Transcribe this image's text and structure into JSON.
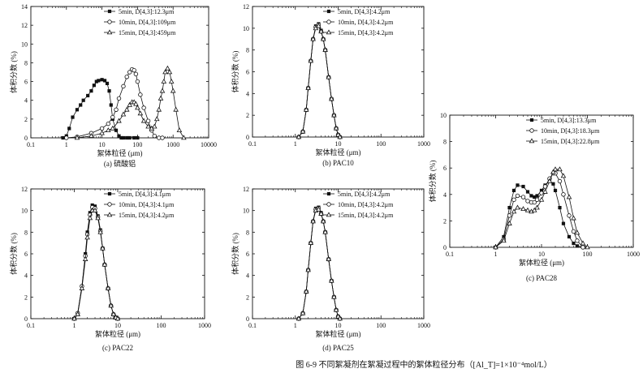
{
  "figure_caption": "图 6-9   不同絮凝剂在絮凝过程中的絮体粒径分布（[Al_T]=1×10⁻⁴mol/L）",
  "chart_data": [
    {
      "type": "line",
      "panel_label": "(a) 硫酸铝",
      "xlabel": "絮体粒径 (μm)",
      "ylabel": "体积分数 (%)",
      "xscale": "log",
      "xlim": [
        0.1,
        10000
      ],
      "ylim": [
        0,
        14
      ],
      "yticks": [
        0,
        2,
        4,
        6,
        8,
        10,
        12,
        14
      ],
      "xticks": [
        "0.1",
        "1",
        "10",
        "100",
        "1000",
        "10000"
      ],
      "legend_position": "top-right",
      "series": [
        {
          "name": "5min, D[4,3]:12.3μm",
          "marker": "square-filled",
          "x": [
            0.8,
            1.0,
            1.2,
            1.5,
            2,
            2.5,
            3,
            4,
            5,
            6,
            7,
            8,
            10,
            12,
            14,
            16,
            18,
            20,
            25,
            30,
            35,
            40,
            50,
            60,
            80,
            100
          ],
          "y": [
            0,
            0.2,
            1.0,
            2.2,
            3.0,
            3.5,
            4.0,
            4.5,
            5.0,
            5.6,
            6.0,
            6.1,
            6.2,
            6.1,
            5.8,
            5.0,
            3.5,
            2.0,
            0.8,
            0.2,
            0,
            0,
            0,
            0,
            0,
            0
          ]
        },
        {
          "name": "10min, D[4,3]:109μm",
          "marker": "circle-open",
          "x": [
            1,
            2,
            5,
            10,
            15,
            20,
            25,
            30,
            40,
            50,
            60,
            70,
            80,
            90,
            100,
            120,
            150,
            200,
            250,
            300,
            400,
            500
          ],
          "y": [
            0,
            0.1,
            0.5,
            1.0,
            1.5,
            2.2,
            3.0,
            4.2,
            5.5,
            6.5,
            7.0,
            7.3,
            7.2,
            6.8,
            6.0,
            4.6,
            3.2,
            1.8,
            0.8,
            0.2,
            0,
            0
          ]
        },
        {
          "name": "15min, D[4,3]:459μm",
          "marker": "triangle-open",
          "x": [
            2,
            5,
            10,
            15,
            20,
            30,
            40,
            50,
            60,
            70,
            80,
            90,
            100,
            120,
            150,
            200,
            250,
            300,
            350,
            400,
            450,
            500,
            550,
            600,
            700,
            800,
            900,
            1000,
            1200,
            1500,
            2000
          ],
          "y": [
            0,
            0.2,
            0.5,
            0.8,
            1.0,
            1.8,
            2.5,
            3.0,
            3.5,
            3.8,
            3.8,
            3.6,
            3.2,
            2.6,
            1.8,
            1.2,
            1.0,
            1.2,
            2.0,
            3.0,
            4.2,
            5.0,
            6.0,
            7.0,
            7.4,
            7.0,
            6.0,
            5.0,
            3.0,
            0.8,
            0
          ]
        }
      ]
    },
    {
      "type": "line",
      "panel_label": "(b) PAC10",
      "xlabel": "絮体粒径 (μm)",
      "ylabel": "体积分数 (%)",
      "xscale": "log",
      "xlim": [
        0.1,
        1000
      ],
      "ylim": [
        0,
        12
      ],
      "yticks": [
        0,
        2,
        4,
        6,
        8,
        10,
        12
      ],
      "xticks": [
        "0.1",
        "1",
        "10",
        "100",
        "1000"
      ],
      "legend_position": "top-right",
      "series": [
        {
          "name": "5min, D[4,3]:4.2μm",
          "marker": "square-filled",
          "x": [
            1.2,
            1.5,
            1.8,
            2.0,
            2.3,
            2.6,
            3.0,
            3.5,
            4.0,
            4.5,
            5.0,
            6.0,
            7.0,
            8.0,
            9.0,
            10.0,
            11.0
          ],
          "y": [
            0,
            0.5,
            2.5,
            4.5,
            7.0,
            9.0,
            10.2,
            10.4,
            9.8,
            9.0,
            8.0,
            5.5,
            3.5,
            2.0,
            0.8,
            0.2,
            0
          ]
        },
        {
          "name": "10min, D[4,3]:4.2μm",
          "marker": "circle-open",
          "x": [
            1.2,
            1.5,
            1.8,
            2.0,
            2.3,
            2.6,
            3.0,
            3.5,
            4.0,
            4.5,
            5.0,
            6.0,
            7.0,
            8.0,
            9.0,
            10.0,
            11.0
          ],
          "y": [
            0,
            0.5,
            2.5,
            4.5,
            7.0,
            9.0,
            10.1,
            10.3,
            9.7,
            9.0,
            8.0,
            5.5,
            3.5,
            2.0,
            0.8,
            0.2,
            0
          ]
        },
        {
          "name": "15min, D[4,3]:4.2μm",
          "marker": "triangle-open",
          "x": [
            1.2,
            1.5,
            1.8,
            2.0,
            2.3,
            2.6,
            3.0,
            3.5,
            4.0,
            4.5,
            5.0,
            6.0,
            7.0,
            8.0,
            9.0,
            10.0,
            11.0
          ],
          "y": [
            0,
            0.5,
            2.5,
            4.5,
            7.0,
            9.0,
            10.0,
            10.2,
            9.7,
            9.0,
            8.0,
            5.5,
            3.5,
            2.0,
            0.8,
            0.2,
            0
          ]
        }
      ]
    },
    {
      "type": "line",
      "panel_label": "(c) PAC22",
      "xlabel": "絮体粒径 (μm)",
      "ylabel": "体积分数 (%)",
      "xscale": "log",
      "xlim": [
        0.1,
        1000
      ],
      "ylim": [
        0,
        12
      ],
      "yticks": [
        0,
        2,
        4,
        6,
        8,
        10,
        12
      ],
      "xticks": [
        "0.1",
        "1",
        "10",
        "100",
        "1000"
      ],
      "legend_position": "top-right",
      "series": [
        {
          "name": "5min, D[4,3]:4.1μm",
          "marker": "square-filled",
          "x": [
            1.0,
            1.2,
            1.5,
            1.8,
            2.0,
            2.3,
            2.6,
            3.0,
            3.5,
            4.0,
            4.5,
            5.0,
            6.0,
            7.0,
            8.0,
            9.0,
            10.0
          ],
          "y": [
            0,
            0.5,
            3.0,
            6.0,
            8.0,
            9.8,
            10.5,
            10.4,
            9.5,
            8.2,
            6.5,
            5.0,
            2.8,
            1.2,
            0.4,
            0.1,
            0
          ]
        },
        {
          "name": "10min, D[4,3]:4.1μm",
          "marker": "circle-open",
          "x": [
            1.0,
            1.2,
            1.5,
            1.8,
            2.0,
            2.3,
            2.6,
            3.0,
            3.5,
            4.0,
            4.5,
            5.0,
            6.0,
            7.0,
            8.0,
            9.0,
            10.0
          ],
          "y": [
            0,
            0.5,
            3.0,
            5.8,
            7.8,
            9.6,
            10.3,
            10.2,
            9.4,
            8.1,
            6.5,
            5.0,
            2.8,
            1.2,
            0.4,
            0.1,
            0
          ]
        },
        {
          "name": "15min, D[4,3]:4.2μm",
          "marker": "triangle-open",
          "x": [
            1.0,
            1.2,
            1.5,
            1.8,
            2.0,
            2.3,
            2.6,
            3.0,
            3.5,
            4.0,
            4.5,
            5.0,
            6.0,
            7.0,
            8.0,
            9.0,
            10.0
          ],
          "y": [
            0,
            0.4,
            2.8,
            5.5,
            7.5,
            9.3,
            10.0,
            10.0,
            9.3,
            8.0,
            6.5,
            5.0,
            2.8,
            1.2,
            0.4,
            0.1,
            0
          ]
        }
      ]
    },
    {
      "type": "line",
      "panel_label": "(d) PAC25",
      "xlabel": "絮体粒径 (μm)",
      "ylabel": "体积分数 (%)",
      "xscale": "log",
      "xlim": [
        0.1,
        1000
      ],
      "ylim": [
        0,
        12
      ],
      "yticks": [
        0,
        2,
        4,
        6,
        8,
        10,
        12
      ],
      "xticks": [
        "0.1",
        "1",
        "10",
        "100",
        "1000"
      ],
      "legend_position": "top-right",
      "series": [
        {
          "name": "5min, D[4,3]:4.2μm",
          "marker": "square-filled",
          "x": [
            1.2,
            1.5,
            1.8,
            2.0,
            2.3,
            2.6,
            3.0,
            3.5,
            4.0,
            4.5,
            5.0,
            6.0,
            7.0,
            8.0,
            9.0,
            10.0,
            11.0
          ],
          "y": [
            0,
            0.5,
            2.5,
            4.5,
            7.0,
            9.0,
            10.2,
            10.3,
            9.8,
            9.0,
            8.0,
            5.5,
            3.5,
            2.0,
            0.8,
            0.2,
            0
          ]
        },
        {
          "name": "10min, D[4,3]:4.2μm",
          "marker": "circle-open",
          "x": [
            1.2,
            1.5,
            1.8,
            2.0,
            2.3,
            2.6,
            3.0,
            3.5,
            4.0,
            4.5,
            5.0,
            6.0,
            7.0,
            8.0,
            9.0,
            10.0,
            11.0
          ],
          "y": [
            0,
            0.5,
            2.5,
            4.5,
            7.0,
            9.0,
            10.1,
            10.2,
            9.7,
            9.0,
            8.0,
            5.5,
            3.5,
            2.0,
            0.8,
            0.2,
            0
          ]
        },
        {
          "name": "15min, D[4,3]:4.2μm",
          "marker": "triangle-open",
          "x": [
            1.2,
            1.5,
            1.8,
            2.0,
            2.3,
            2.6,
            3.0,
            3.5,
            4.0,
            4.5,
            5.0,
            6.0,
            7.0,
            8.0,
            9.0,
            10.0,
            11.0
          ],
          "y": [
            0,
            0.5,
            2.5,
            4.5,
            7.0,
            9.0,
            10.0,
            10.1,
            9.7,
            9.0,
            8.0,
            5.5,
            3.5,
            2.0,
            0.8,
            0.2,
            0
          ]
        }
      ]
    },
    {
      "type": "line",
      "panel_label": "(c) PAC28",
      "xlabel": "絮体粒径 (μm)",
      "ylabel": "体积分数 (%)",
      "xscale": "log",
      "xlim": [
        0.1,
        1000
      ],
      "ylim": [
        0,
        10
      ],
      "yticks": [
        0,
        2,
        4,
        6,
        8,
        10
      ],
      "xticks": [
        "0.1",
        "1",
        "10",
        "100",
        "1000"
      ],
      "legend_position": "top-right",
      "series": [
        {
          "name": "5min, D[4,3]:13.3μm",
          "marker": "square-filled",
          "x": [
            1,
            1.5,
            2,
            2.5,
            3,
            4,
            5,
            6,
            7,
            8,
            10,
            12,
            15,
            18,
            20,
            25,
            30,
            40,
            50,
            60,
            80
          ],
          "y": [
            0,
            0.8,
            3.0,
            4.3,
            4.7,
            4.6,
            4.2,
            3.9,
            3.8,
            3.9,
            4.3,
            4.7,
            5.0,
            4.8,
            4.3,
            3.0,
            1.8,
            0.8,
            0.3,
            0.1,
            0
          ]
        },
        {
          "name": "10min, D[4,3]:18.3μm",
          "marker": "circle-open",
          "x": [
            1,
            1.5,
            2,
            2.5,
            3,
            4,
            5,
            6,
            7,
            8,
            10,
            12,
            15,
            18,
            20,
            25,
            30,
            40,
            50,
            60,
            80
          ],
          "y": [
            0,
            0.6,
            2.4,
            3.6,
            3.9,
            3.8,
            3.5,
            3.4,
            3.4,
            3.6,
            4.1,
            4.6,
            5.2,
            5.6,
            5.6,
            5.0,
            4.0,
            2.4,
            1.2,
            0.5,
            0
          ]
        },
        {
          "name": "15min, D[4,3]:22.8μm",
          "marker": "triangle-open",
          "x": [
            1,
            1.5,
            2,
            2.5,
            3,
            4,
            5,
            6,
            7,
            8,
            10,
            12,
            15,
            18,
            20,
            25,
            30,
            40,
            50,
            60,
            80,
            100
          ],
          "y": [
            0,
            0.5,
            1.8,
            2.7,
            3.0,
            2.9,
            2.8,
            2.7,
            2.8,
            3.0,
            3.6,
            4.2,
            5.0,
            5.7,
            5.9,
            5.9,
            5.4,
            3.8,
            2.2,
            1.1,
            0.3,
            0
          ]
        }
      ]
    }
  ]
}
